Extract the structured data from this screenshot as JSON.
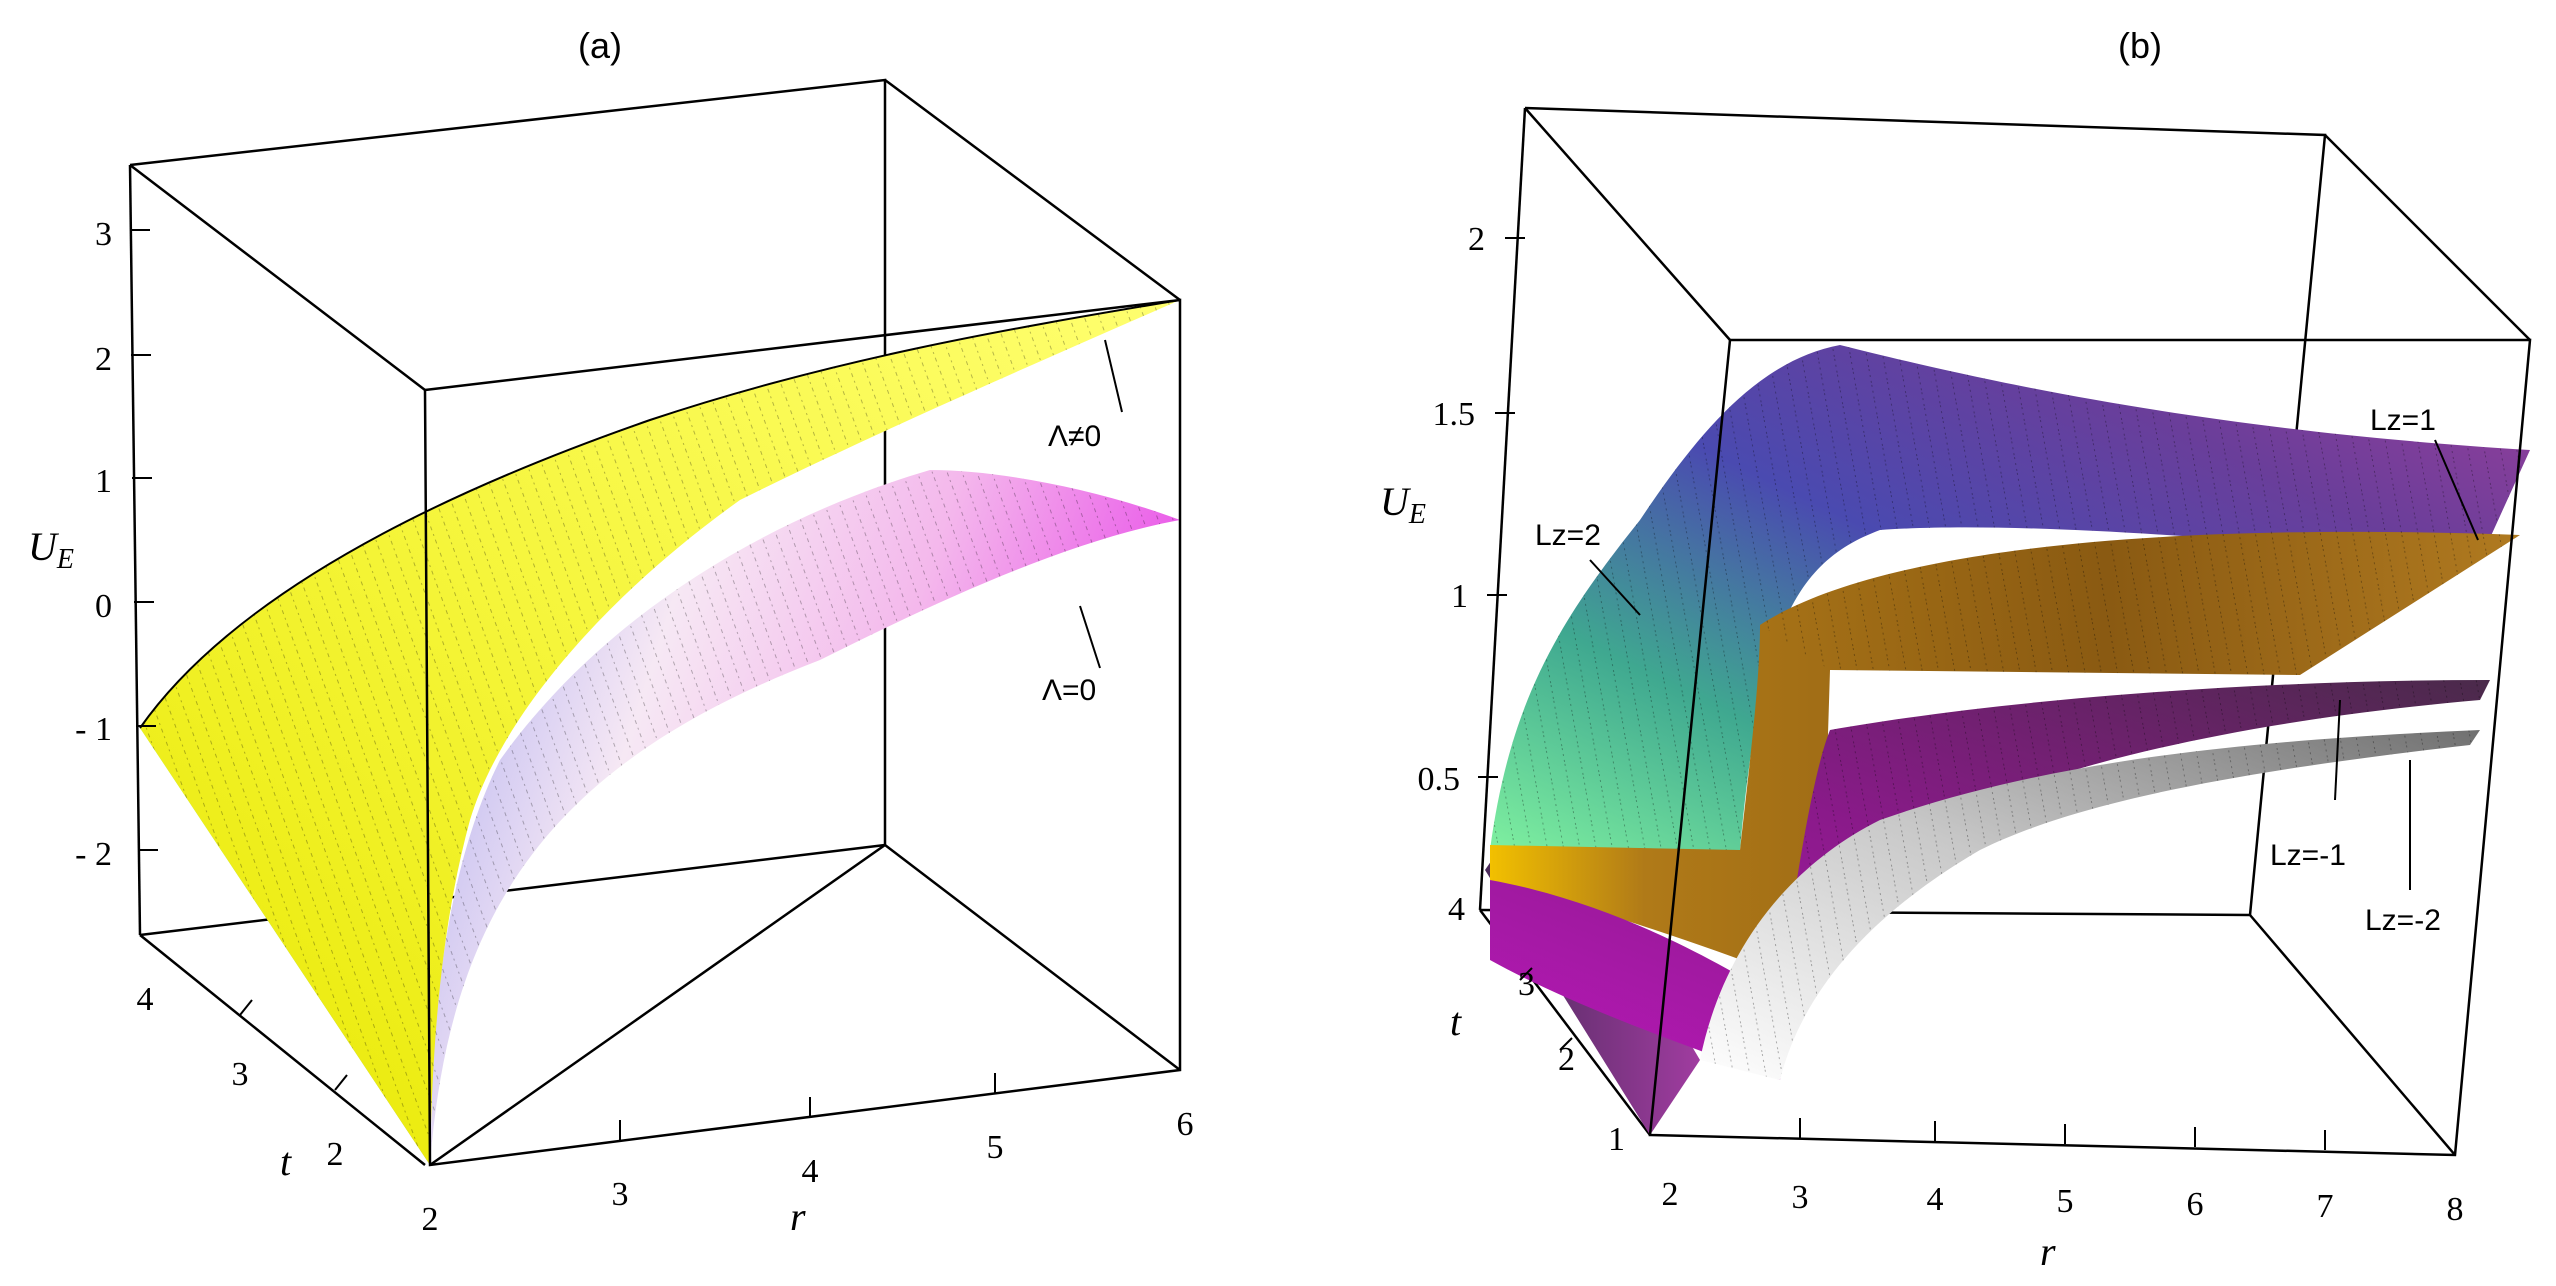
{
  "chart_data": [
    {
      "panel": "(a)",
      "type": "surface3d",
      "zlabel": "U",
      "zlabel_sub": "E",
      "xlabel": "r",
      "ylabel": "t",
      "xlim": [
        2,
        6
      ],
      "ylim": [
        1,
        4
      ],
      "zlim": [
        -2.7,
        3.5
      ],
      "x_ticks": [
        "2",
        "3",
        "4",
        "5",
        "6"
      ],
      "y_ticks": [
        "2",
        "3",
        "4"
      ],
      "z_ticks": [
        "- 2",
        "- 1",
        "0",
        "1",
        "2",
        "3"
      ],
      "series": [
        {
          "name": "Λ≠0",
          "color_light": "#f7f74a",
          "color_dark": "#d9d900",
          "corners": {
            "r2_t1": -2.6,
            "r2_t4": -0.95,
            "r6_t1": 2.45,
            "r6_t4": 2.45
          }
        },
        {
          "name": "Λ=0",
          "color_light": "#fff3f7",
          "color_dark": "#e64fe6",
          "corners": {
            "r2_t1": -2.6,
            "r2_t4": -2.2,
            "r6_t1": 0.1,
            "r6_t4": 0.95
          }
        }
      ]
    },
    {
      "panel": "(b)",
      "type": "surface3d",
      "zlabel": "U",
      "zlabel_sub": "E",
      "xlabel": "r",
      "ylabel": "t",
      "xlim": [
        2,
        8
      ],
      "ylim": [
        1,
        4
      ],
      "zlim": [
        0.3,
        2.3
      ],
      "x_ticks": [
        "2",
        "3",
        "4",
        "5",
        "6",
        "7",
        "8"
      ],
      "y_ticks": [
        "1",
        "2",
        "3",
        "4"
      ],
      "z_ticks": [
        "0.5",
        "1",
        "1.5",
        "2"
      ],
      "series": [
        {
          "name": "Lz=2",
          "color_light": "#7ff0a0",
          "color_dark": "#5a3fa6"
        },
        {
          "name": "Lz=1",
          "color_light": "#ffd000",
          "color_dark": "#8a5a12"
        },
        {
          "name": "Lz=-1",
          "color_light": "#c020c0",
          "color_dark": "#5a1e5a"
        },
        {
          "name": "Lz=-2",
          "color_light": "#ffffff",
          "color_dark": "#8c8c8c"
        }
      ]
    }
  ]
}
